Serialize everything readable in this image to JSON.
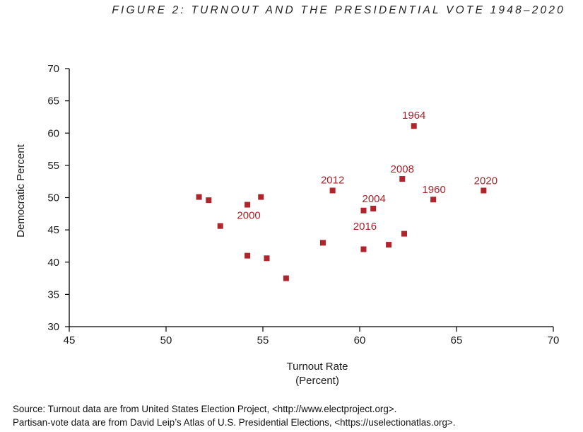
{
  "figure_title": "FIGURE 2: TURNOUT AND THE PRESIDENTIAL VOTE 1948–2020",
  "source": {
    "line1": "Source: Turnout data are from United States Election Project, <http://www.electproject.org>.",
    "line2": "Partisan-vote data are from David Leip’s Atlas of U.S. Presidential Elections, <https://uselectionatlas.org>."
  },
  "colors": {
    "marker": "#b0242b",
    "label": "#a8232a",
    "axis": "#000000"
  },
  "chart_data": {
    "type": "scatter",
    "title": "FIGURE 2: TURNOUT AND THE PRESIDENTIAL VOTE 1948–2020",
    "xlabel": "Turnout Rate",
    "xlabel_sub": "(Percent)",
    "ylabel": "Democratic Percent",
    "xlim": [
      45,
      70
    ],
    "ylim": [
      30,
      70
    ],
    "xticks": [
      45,
      50,
      55,
      60,
      65,
      70
    ],
    "yticks": [
      30,
      35,
      40,
      45,
      50,
      55,
      60,
      65,
      70
    ],
    "grid": false,
    "points": [
      {
        "x": 51.7,
        "y": 50.1,
        "label": ""
      },
      {
        "x": 52.2,
        "y": 49.6,
        "label": ""
      },
      {
        "x": 52.8,
        "y": 45.6,
        "label": ""
      },
      {
        "x": 54.2,
        "y": 48.9,
        "label": ""
      },
      {
        "x": 54.2,
        "y": 41.0,
        "label": ""
      },
      {
        "x": 54.9,
        "y": 50.1,
        "label": ""
      },
      {
        "x": 55.2,
        "y": 40.6,
        "label": ""
      },
      {
        "x": 56.2,
        "y": 37.5,
        "label": ""
      },
      {
        "x": 58.1,
        "y": 43.0,
        "label": ""
      },
      {
        "x": 58.6,
        "y": 51.1,
        "label": "2012"
      },
      {
        "x": 60.2,
        "y": 48.0,
        "label": "2016"
      },
      {
        "x": 60.2,
        "y": 42.0,
        "label": ""
      },
      {
        "x": 60.7,
        "y": 48.3,
        "label": "2004"
      },
      {
        "x": 61.5,
        "y": 42.7,
        "label": ""
      },
      {
        "x": 62.2,
        "y": 52.9,
        "label": "2008"
      },
      {
        "x": 62.3,
        "y": 44.4,
        "label": ""
      },
      {
        "x": 62.8,
        "y": 61.1,
        "label": "1964"
      },
      {
        "x": 63.8,
        "y": 49.7,
        "label": "1960"
      },
      {
        "x": 66.4,
        "y": 51.1,
        "label": "2020"
      }
    ],
    "annotations": [
      {
        "text": "2000",
        "x": 54.2,
        "y": 48.9
      }
    ]
  }
}
